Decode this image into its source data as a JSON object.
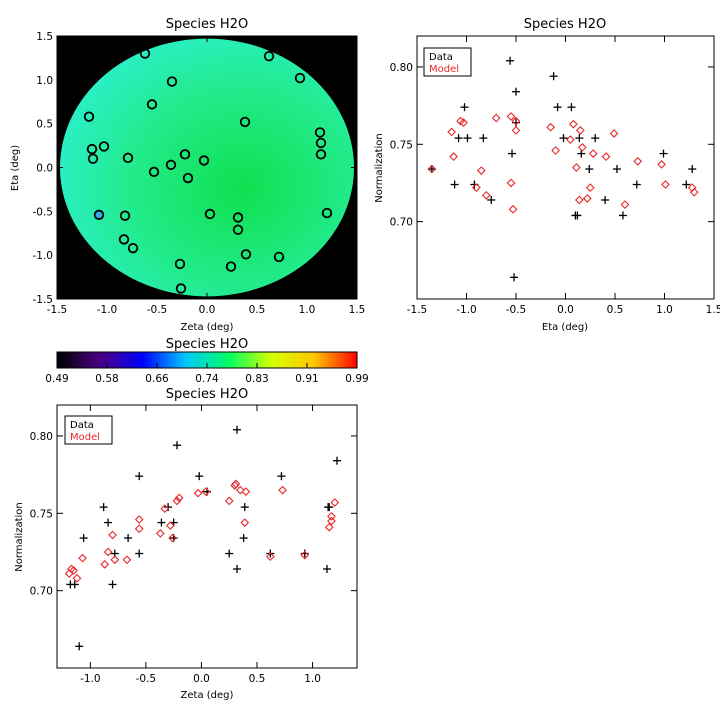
{
  "chart_data": [
    {
      "id": "map",
      "type": "heatmap",
      "title": "Species H2O",
      "xlabel": "Zeta (deg)",
      "ylabel": "Eta (deg)",
      "xlim": [
        -1.5,
        1.5
      ],
      "ylim": [
        -1.5,
        1.5
      ],
      "xticks": [
        "-1.5",
        "-1.0",
        "-0.5",
        "0.0",
        "0.5",
        "1.0",
        "1.5"
      ],
      "yticks": [
        "-1.5",
        "-1.0",
        "-0.5",
        "0.0",
        "0.5",
        "1.0",
        "1.5"
      ],
      "background_color": "#000000",
      "field_radius_deg": 1.47,
      "points": [
        {
          "x": -0.62,
          "y": 1.3
        },
        {
          "x": 0.62,
          "y": 1.27
        },
        {
          "x": 0.93,
          "y": 1.02
        },
        {
          "x": -0.35,
          "y": 0.98
        },
        {
          "x": -0.55,
          "y": 0.72
        },
        {
          "x": -1.18,
          "y": 0.58
        },
        {
          "x": 0.38,
          "y": 0.52
        },
        {
          "x": 1.13,
          "y": 0.4
        },
        {
          "x": 1.14,
          "y": 0.28
        },
        {
          "x": -1.15,
          "y": 0.21
        },
        {
          "x": -1.03,
          "y": 0.24
        },
        {
          "x": 1.14,
          "y": 0.15
        },
        {
          "x": -0.22,
          "y": 0.15
        },
        {
          "x": -0.79,
          "y": 0.11
        },
        {
          "x": -1.14,
          "y": 0.1
        },
        {
          "x": -0.03,
          "y": 0.08
        },
        {
          "x": -0.36,
          "y": 0.03
        },
        {
          "x": -0.53,
          "y": -0.05
        },
        {
          "x": -0.19,
          "y": -0.12
        },
        {
          "x": 1.2,
          "y": -0.52
        },
        {
          "x": -1.08,
          "y": -0.54,
          "highlight": true
        },
        {
          "x": -0.82,
          "y": -0.55
        },
        {
          "x": 0.03,
          "y": -0.53
        },
        {
          "x": 0.31,
          "y": -0.57
        },
        {
          "x": 0.31,
          "y": -0.71
        },
        {
          "x": -0.83,
          "y": -0.82
        },
        {
          "x": -0.74,
          "y": -0.92
        },
        {
          "x": 0.39,
          "y": -0.99
        },
        {
          "x": 0.72,
          "y": -1.02
        },
        {
          "x": -0.27,
          "y": -1.1
        },
        {
          "x": 0.24,
          "y": -1.13
        },
        {
          "x": -0.26,
          "y": -1.38
        }
      ]
    },
    {
      "id": "colorbar",
      "type": "colorbar",
      "title": "Species H2O",
      "range": [
        0.49,
        0.99
      ],
      "tick_labels": [
        "0.49",
        "0.58",
        "0.66",
        "0.74",
        "0.83",
        "0.91",
        "0.99"
      ],
      "colors": [
        "#000000",
        "#4b0082",
        "#0000ff",
        "#00c8ff",
        "#00ff64",
        "#d4ff00",
        "#ffc800",
        "#ff0000"
      ]
    },
    {
      "id": "eta",
      "type": "scatter",
      "title": "Species H2O",
      "xlabel": "Eta (deg)",
      "ylabel": "Normalization",
      "xlim": [
        -1.5,
        1.5
      ],
      "ylim": [
        0.65,
        0.82
      ],
      "xticks": [
        "-1.5",
        "-1.0",
        "-0.5",
        "0.0",
        "0.5",
        "1.0",
        "1.5"
      ],
      "yticks": [
        "0.70",
        "0.75",
        "0.80"
      ],
      "legend": {
        "position": "top-left",
        "entries": [
          "Data",
          "Model"
        ]
      },
      "series": [
        {
          "name": "Data",
          "marker": "plus",
          "color": "#000000",
          "points": [
            [
              -1.35,
              0.734
            ],
            [
              -1.12,
              0.724
            ],
            [
              -1.08,
              0.754
            ],
            [
              -1.02,
              0.774
            ],
            [
              -0.99,
              0.754
            ],
            [
              -0.92,
              0.724
            ],
            [
              -0.83,
              0.754
            ],
            [
              -0.75,
              0.714
            ],
            [
              -0.56,
              0.804
            ],
            [
              -0.54,
              0.744
            ],
            [
              -0.52,
              0.664
            ],
            [
              -0.5,
              0.784
            ],
            [
              -0.5,
              0.764
            ],
            [
              -0.12,
              0.794
            ],
            [
              -0.08,
              0.774
            ],
            [
              -0.02,
              0.754
            ],
            [
              0.06,
              0.774
            ],
            [
              0.1,
              0.704
            ],
            [
              0.12,
              0.704
            ],
            [
              0.14,
              0.754
            ],
            [
              0.16,
              0.744
            ],
            [
              0.24,
              0.734
            ],
            [
              0.3,
              0.754
            ],
            [
              0.4,
              0.714
            ],
            [
              0.52,
              0.734
            ],
            [
              0.58,
              0.704
            ],
            [
              0.72,
              0.724
            ],
            [
              0.99,
              0.744
            ],
            [
              1.22,
              0.724
            ],
            [
              1.28,
              0.734
            ]
          ]
        },
        {
          "name": "Model",
          "marker": "diamond",
          "color": "#e8282a",
          "points": [
            [
              -1.35,
              0.734
            ],
            [
              -1.15,
              0.758
            ],
            [
              -1.13,
              0.742
            ],
            [
              -1.06,
              0.765
            ],
            [
              -1.03,
              0.764
            ],
            [
              -0.9,
              0.722
            ],
            [
              -0.85,
              0.733
            ],
            [
              -0.8,
              0.717
            ],
            [
              -0.7,
              0.767
            ],
            [
              -0.55,
              0.768
            ],
            [
              -0.55,
              0.725
            ],
            [
              -0.53,
              0.708
            ],
            [
              -0.5,
              0.759
            ],
            [
              -0.5,
              0.765
            ],
            [
              -0.15,
              0.761
            ],
            [
              -0.1,
              0.746
            ],
            [
              0.05,
              0.753
            ],
            [
              0.08,
              0.763
            ],
            [
              0.11,
              0.735
            ],
            [
              0.14,
              0.714
            ],
            [
              0.15,
              0.759
            ],
            [
              0.17,
              0.748
            ],
            [
              0.22,
              0.715
            ],
            [
              0.25,
              0.722
            ],
            [
              0.28,
              0.744
            ],
            [
              0.41,
              0.742
            ],
            [
              0.49,
              0.757
            ],
            [
              0.6,
              0.711
            ],
            [
              0.73,
              0.739
            ],
            [
              0.97,
              0.737
            ],
            [
              1.01,
              0.724
            ],
            [
              1.28,
              0.722
            ],
            [
              1.3,
              0.719
            ]
          ]
        }
      ]
    },
    {
      "id": "zeta",
      "type": "scatter",
      "title": "Species H2O",
      "xlabel": "Zeta (deg)",
      "ylabel": "Normalization",
      "xlim": [
        -1.3,
        1.4
      ],
      "ylim": [
        0.65,
        0.82
      ],
      "xticks": [
        "-1.0",
        "-0.5",
        "0.0",
        "0.5",
        "1.0"
      ],
      "yticks": [
        "0.70",
        "0.75",
        "0.80"
      ],
      "legend": {
        "position": "top-left",
        "entries": [
          "Data",
          "Model"
        ]
      },
      "series": [
        {
          "name": "Data",
          "marker": "plus",
          "color": "#000000",
          "points": [
            [
              -1.18,
              0.704
            ],
            [
              -1.14,
              0.704
            ],
            [
              -1.1,
              0.664
            ],
            [
              -1.06,
              0.734
            ],
            [
              -0.88,
              0.754
            ],
            [
              -0.84,
              0.744
            ],
            [
              -0.8,
              0.704
            ],
            [
              -0.78,
              0.724
            ],
            [
              -0.66,
              0.734
            ],
            [
              -0.56,
              0.774
            ],
            [
              -0.56,
              0.724
            ],
            [
              -0.36,
              0.744
            ],
            [
              -0.3,
              0.754
            ],
            [
              -0.22,
              0.794
            ],
            [
              -0.25,
              0.734
            ],
            [
              -0.25,
              0.744
            ],
            [
              -0.02,
              0.774
            ],
            [
              0.05,
              0.764
            ],
            [
              0.25,
              0.724
            ],
            [
              0.32,
              0.804
            ],
            [
              0.32,
              0.714
            ],
            [
              0.38,
              0.734
            ],
            [
              0.39,
              0.754
            ],
            [
              0.62,
              0.724
            ],
            [
              0.72,
              0.774
            ],
            [
              0.93,
              0.724
            ],
            [
              1.13,
              0.714
            ],
            [
              1.14,
              0.754
            ],
            [
              1.15,
              0.754
            ],
            [
              1.22,
              0.784
            ]
          ]
        },
        {
          "name": "Model",
          "marker": "diamond",
          "color": "#e8282a",
          "points": [
            [
              -1.19,
              0.711
            ],
            [
              -1.17,
              0.714
            ],
            [
              -1.15,
              0.713
            ],
            [
              -1.12,
              0.708
            ],
            [
              -1.07,
              0.721
            ],
            [
              -0.87,
              0.717
            ],
            [
              -0.84,
              0.725
            ],
            [
              -0.8,
              0.736
            ],
            [
              -0.78,
              0.72
            ],
            [
              -0.67,
              0.72
            ],
            [
              -0.56,
              0.74
            ],
            [
              -0.56,
              0.746
            ],
            [
              -0.37,
              0.737
            ],
            [
              -0.33,
              0.753
            ],
            [
              -0.28,
              0.742
            ],
            [
              -0.26,
              0.734
            ],
            [
              -0.22,
              0.758
            ],
            [
              -0.2,
              0.76
            ],
            [
              -0.03,
              0.763
            ],
            [
              0.04,
              0.764
            ],
            [
              0.25,
              0.758
            ],
            [
              0.3,
              0.768
            ],
            [
              0.31,
              0.769
            ],
            [
              0.35,
              0.765
            ],
            [
              0.39,
              0.744
            ],
            [
              0.4,
              0.764
            ],
            [
              0.62,
              0.722
            ],
            [
              0.73,
              0.765
            ],
            [
              0.93,
              0.723
            ],
            [
              1.15,
              0.741
            ],
            [
              1.17,
              0.748
            ],
            [
              1.17,
              0.745
            ],
            [
              1.2,
              0.757
            ]
          ]
        }
      ]
    }
  ]
}
